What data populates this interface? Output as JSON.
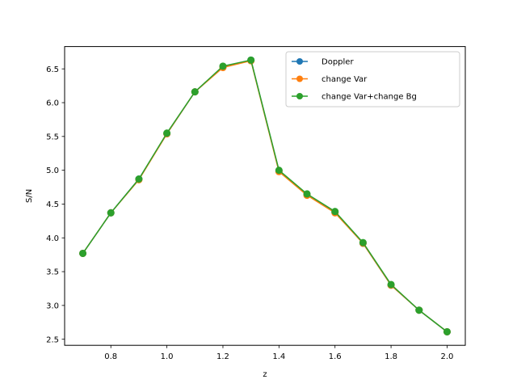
{
  "chart_data": {
    "type": "line",
    "title": "",
    "xlabel": "z",
    "ylabel": "S/N",
    "xlim": [
      0.635,
      2.065
    ],
    "ylim": [
      2.41,
      6.83
    ],
    "xticks": [
      0.8,
      1.0,
      1.2,
      1.4,
      1.6,
      1.8,
      2.0
    ],
    "xtick_labels": [
      "0.8",
      "1.0",
      "1.2",
      "1.4",
      "1.6",
      "1.8",
      "2.0"
    ],
    "yticks": [
      2.5,
      3.0,
      3.5,
      4.0,
      4.5,
      5.0,
      5.5,
      6.0,
      6.5
    ],
    "ytick_labels": [
      "2.5",
      "3.0",
      "3.5",
      "4.0",
      "4.5",
      "5.0",
      "5.5",
      "6.0",
      "6.5"
    ],
    "grid": false,
    "legend_position": "top-right",
    "x": [
      0.7,
      0.8,
      0.9,
      1.0,
      1.1,
      1.2,
      1.3,
      1.4,
      1.5,
      1.6,
      1.7,
      1.8,
      1.9,
      2.0
    ],
    "series": [
      {
        "name": "Doppler",
        "color": "#1f77b4",
        "values": [
          3.77,
          4.37,
          4.87,
          5.54,
          6.16,
          6.53,
          6.63,
          4.99,
          4.64,
          4.38,
          3.92,
          3.3,
          2.93,
          2.61
        ]
      },
      {
        "name": "change Var",
        "color": "#ff7f0e",
        "values": [
          3.77,
          4.37,
          4.86,
          5.54,
          6.16,
          6.52,
          6.62,
          4.98,
          4.63,
          4.37,
          3.92,
          3.3,
          2.93,
          2.61
        ]
      },
      {
        "name": "change Var+change Bg",
        "color": "#2ca02c",
        "values": [
          3.77,
          4.37,
          4.87,
          5.55,
          6.16,
          6.54,
          6.63,
          5.0,
          4.65,
          4.39,
          3.93,
          3.31,
          2.93,
          2.61
        ]
      }
    ]
  }
}
